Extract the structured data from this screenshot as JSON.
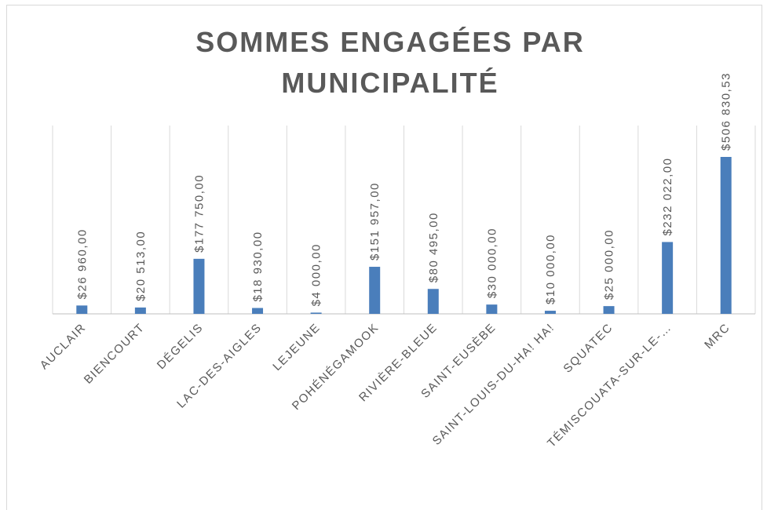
{
  "chart_data": {
    "type": "bar",
    "title": "SOMMES ENGAGÉES PAR MUNICIPALITÉ",
    "categories": [
      "AUCLAIR",
      "BIENCOURT",
      "DÉGELIS",
      "LAC-DES-AIGLES",
      "LEJEUNE",
      "POHÉNÉGAMOOK",
      "RIVIÈRE-BLEUE",
      "SAINT-EUSÈBE",
      "SAINT-LOUIS-DU-HA! HA!",
      "SQUATEC",
      "TÉMISCOUATA-SUR-LE-…",
      "MRC"
    ],
    "values": [
      26960,
      20513,
      177750,
      18930,
      4000,
      151957,
      80495,
      30000,
      10000,
      25000,
      232022,
      506830.53
    ],
    "value_labels": [
      "$26 960,00",
      "$20 513,00",
      "$177 750,00",
      "$18 930,00",
      "$4 000,00",
      "$151 957,00",
      "$80 495,00",
      "$30 000,00",
      "$10 000,00",
      "$25 000,00",
      "$232 022,00",
      "$506 830,53"
    ],
    "color": "#4a7ebb",
    "grid": true
  }
}
